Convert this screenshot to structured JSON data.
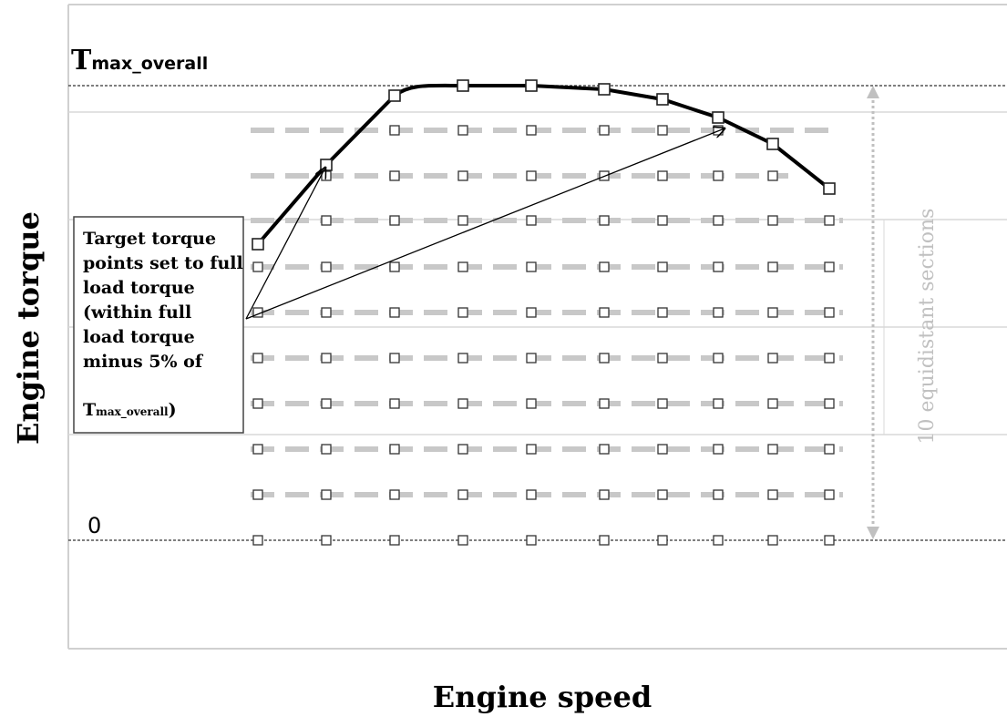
{
  "diagram": {
    "tmax_label_main": "T",
    "tmax_label_sub": "max_overall",
    "zero_label": "0",
    "y_axis_title": "Engine torque",
    "x_axis_title": "Engine speed",
    "sections_label": "10 equidistant sections",
    "annotation": {
      "line1": "Target torque",
      "line2": "points set to full",
      "line3": "load torque",
      "line4": "(within full",
      "line5": "load torque",
      "line6": "minus 5% of",
      "line7_main": "T",
      "line7_sub": "max_overall",
      "line7_tail": ")"
    },
    "full_load_torque_fraction_of_tmax": [
      0.66,
      0.82,
      0.98,
      1.0,
      1.0,
      0.99,
      0.97,
      0.93,
      0.87,
      0.77
    ],
    "section_count": 10,
    "speed_point_count": 10,
    "colors": {
      "curve": "#000000",
      "dashed_levels": "#c8c8c8",
      "grid": "#d8d8d8",
      "sections_text": "#c0c0c0",
      "reference_lines": "#333333"
    }
  }
}
